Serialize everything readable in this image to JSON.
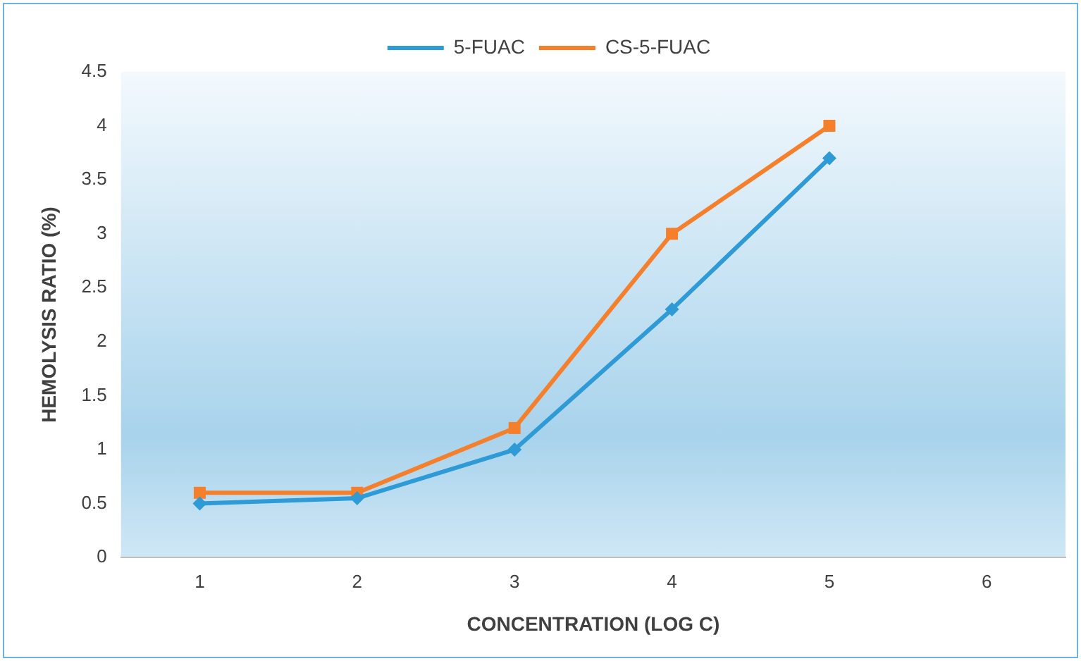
{
  "chart_data": {
    "type": "line",
    "xlabel": "CONCENTRATION (LOG C)",
    "ylabel": "HEMOLYSIS RATIO (%)",
    "categories": [
      "1",
      "2",
      "3",
      "4",
      "5",
      "6"
    ],
    "series": [
      {
        "name": "5-FUAC",
        "color": "#2e9ad6",
        "marker": "diamond",
        "values": [
          0.5,
          0.55,
          1.0,
          2.3,
          3.7,
          null
        ]
      },
      {
        "name": "CS-5-FUAC",
        "color": "#f57f2a",
        "marker": "square",
        "values": [
          0.6,
          0.6,
          1.2,
          3.0,
          4.0,
          null
        ]
      }
    ],
    "ylim": [
      0,
      4.5
    ],
    "yticks": [
      0,
      0.5,
      1,
      1.5,
      2,
      2.5,
      3,
      3.5,
      4,
      4.5
    ],
    "grid": false,
    "legend": "top",
    "line_style": "solid"
  }
}
